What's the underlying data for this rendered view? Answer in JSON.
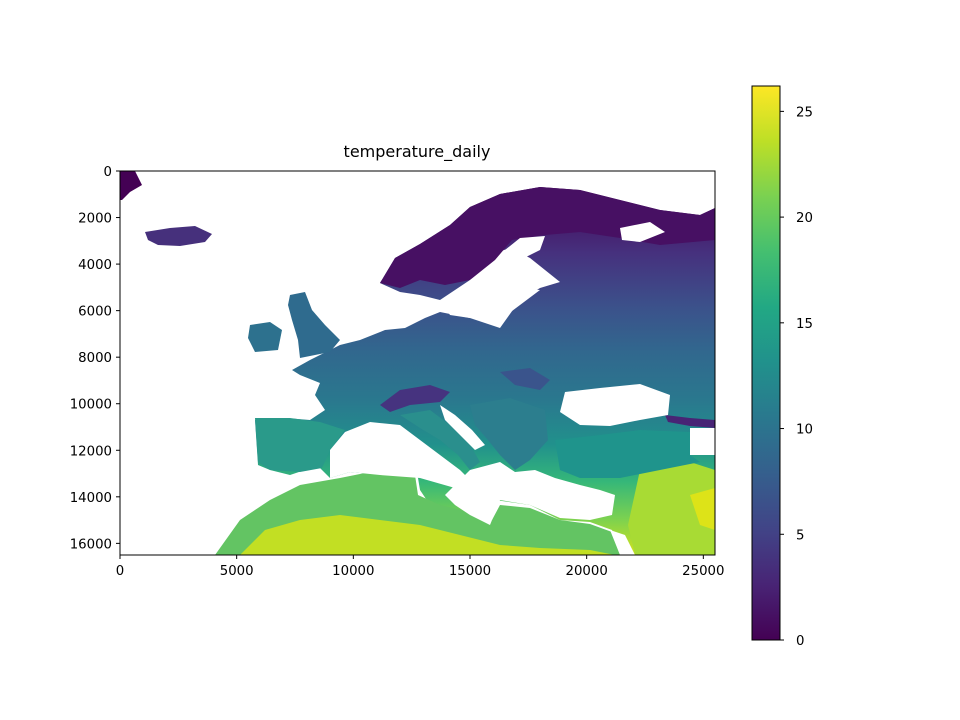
{
  "chart_data": {
    "type": "heatmap",
    "title": "temperature_daily",
    "xlabel": "",
    "ylabel": "",
    "xlim": [
      0,
      25500
    ],
    "ylim": [
      16500,
      0
    ],
    "x_ticks": [
      0,
      5000,
      10000,
      15000,
      20000,
      25000
    ],
    "x_tick_labels": [
      "0",
      "5000",
      "10000",
      "15000",
      "20000",
      "25000"
    ],
    "y_ticks": [
      0,
      2000,
      4000,
      6000,
      8000,
      10000,
      12000,
      14000,
      16000
    ],
    "y_tick_labels": [
      "0",
      "2000",
      "4000",
      "6000",
      "8000",
      "10000",
      "12000",
      "14000",
      "16000"
    ],
    "colormap": "viridis",
    "colorbar": {
      "min": 0,
      "max": 26.2,
      "ticks": [
        0,
        5,
        10,
        15,
        20,
        25
      ],
      "tick_labels": [
        "0",
        "5",
        "10",
        "15",
        "20",
        "25"
      ]
    },
    "grid": false,
    "masked_color": "#ffffff"
  }
}
